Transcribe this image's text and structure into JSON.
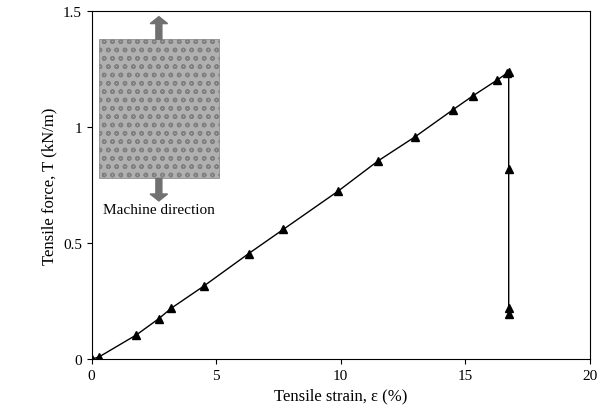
{
  "chart_data": {
    "type": "line",
    "x_label": "Tensile strain, ε (%)",
    "y_label": "Tensile force, T (kN/m)",
    "annotations": [
      "Machine direction"
    ],
    "x": [
      0,
      0.3,
      1.8,
      2.7,
      3.2,
      4.5,
      6.3,
      7.7,
      9.9,
      11.5,
      13.0,
      14.5,
      15.3,
      16.3,
      16.7,
      16.75,
      16.75,
      16.75,
      16.75
    ],
    "values": [
      0,
      0.01,
      0.105,
      0.175,
      0.22,
      0.315,
      0.455,
      0.56,
      0.725,
      0.855,
      0.96,
      1.075,
      1.135,
      1.205,
      1.235,
      1.24,
      0.82,
      0.22,
      0.195
    ],
    "color": "#000000",
    "marker": "triangle",
    "line_style": "solid",
    "xlim": [
      0,
      20
    ],
    "xticks": [
      0,
      5,
      10,
      15,
      20
    ],
    "ylim": [
      0,
      1.5
    ],
    "yticks": [
      0,
      0.5,
      1,
      1.5
    ],
    "grid": false
  }
}
